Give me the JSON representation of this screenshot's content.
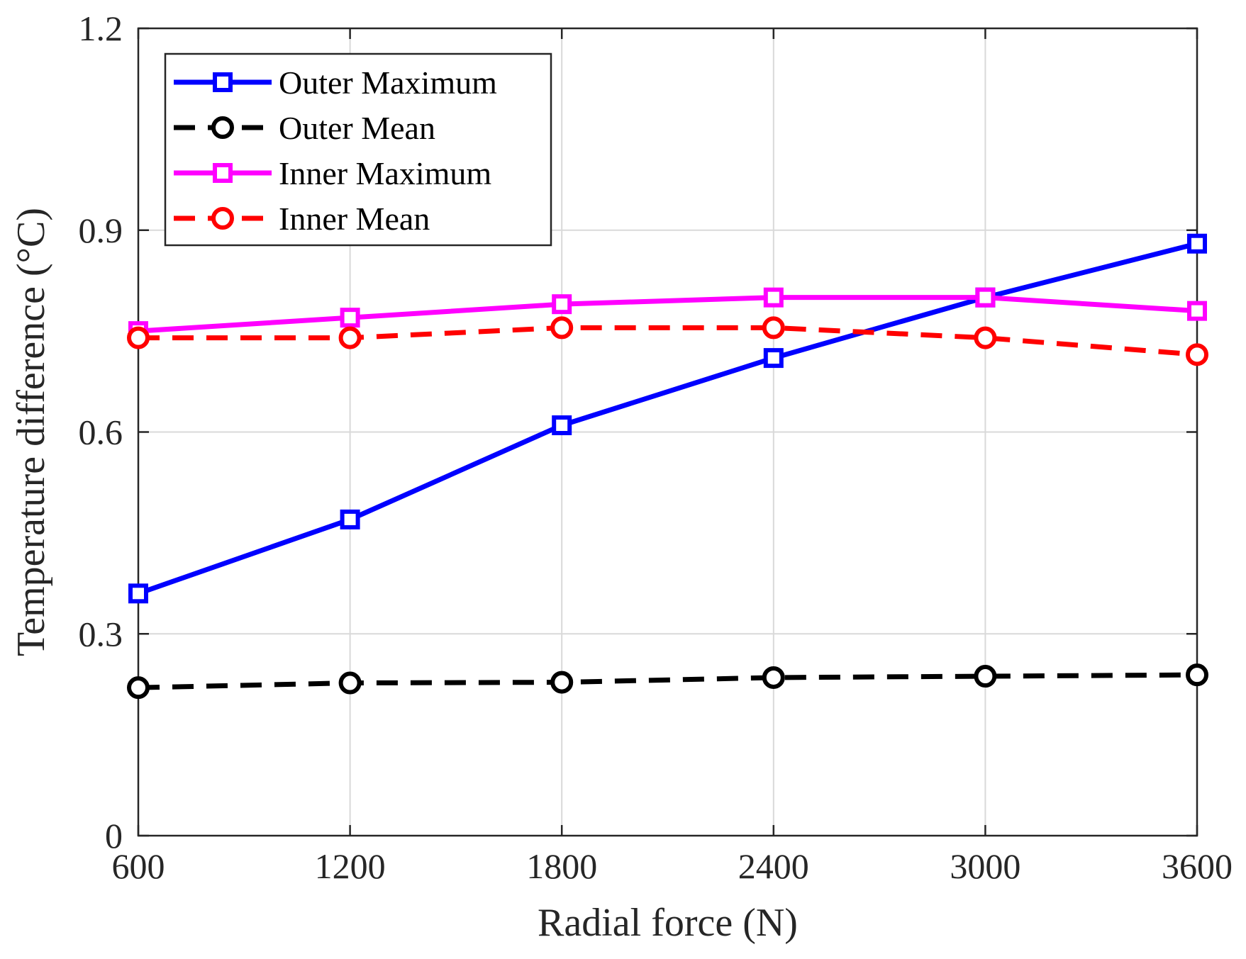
{
  "chart_data": {
    "type": "line",
    "title": "",
    "xlabel": "Radial force (N)",
    "ylabel": "Temperature difference (°C)",
    "x": [
      600,
      1200,
      1800,
      2400,
      3000,
      3600
    ],
    "xticks": [
      "600",
      "1200",
      "1800",
      "2400",
      "3000",
      "3600"
    ],
    "yticks": [
      "0",
      "0.3",
      "0.6",
      "0.9",
      "1.2"
    ],
    "ytick_values": [
      0,
      0.3,
      0.6,
      0.9,
      1.2
    ],
    "xlim": [
      600,
      3600
    ],
    "ylim": [
      0,
      1.2
    ],
    "grid": true,
    "legend_position": "top-left",
    "series": [
      {
        "name": "Outer Maximum",
        "values": [
          0.36,
          0.47,
          0.61,
          0.71,
          0.8,
          0.88
        ],
        "color": "#0000ff",
        "line_style": "solid",
        "marker": "square"
      },
      {
        "name": "Outer Mean",
        "values": [
          0.22,
          0.227,
          0.228,
          0.235,
          0.237,
          0.239
        ],
        "color": "#000000",
        "line_style": "dashed",
        "marker": "circle"
      },
      {
        "name": "Inner Maximum",
        "values": [
          0.75,
          0.77,
          0.79,
          0.8,
          0.8,
          0.78
        ],
        "color": "#ff00ff",
        "line_style": "solid",
        "marker": "square"
      },
      {
        "name": "Inner Mean",
        "values": [
          0.74,
          0.74,
          0.755,
          0.755,
          0.74,
          0.715
        ],
        "color": "#ff0000",
        "line_style": "dashed",
        "marker": "circle"
      }
    ]
  }
}
